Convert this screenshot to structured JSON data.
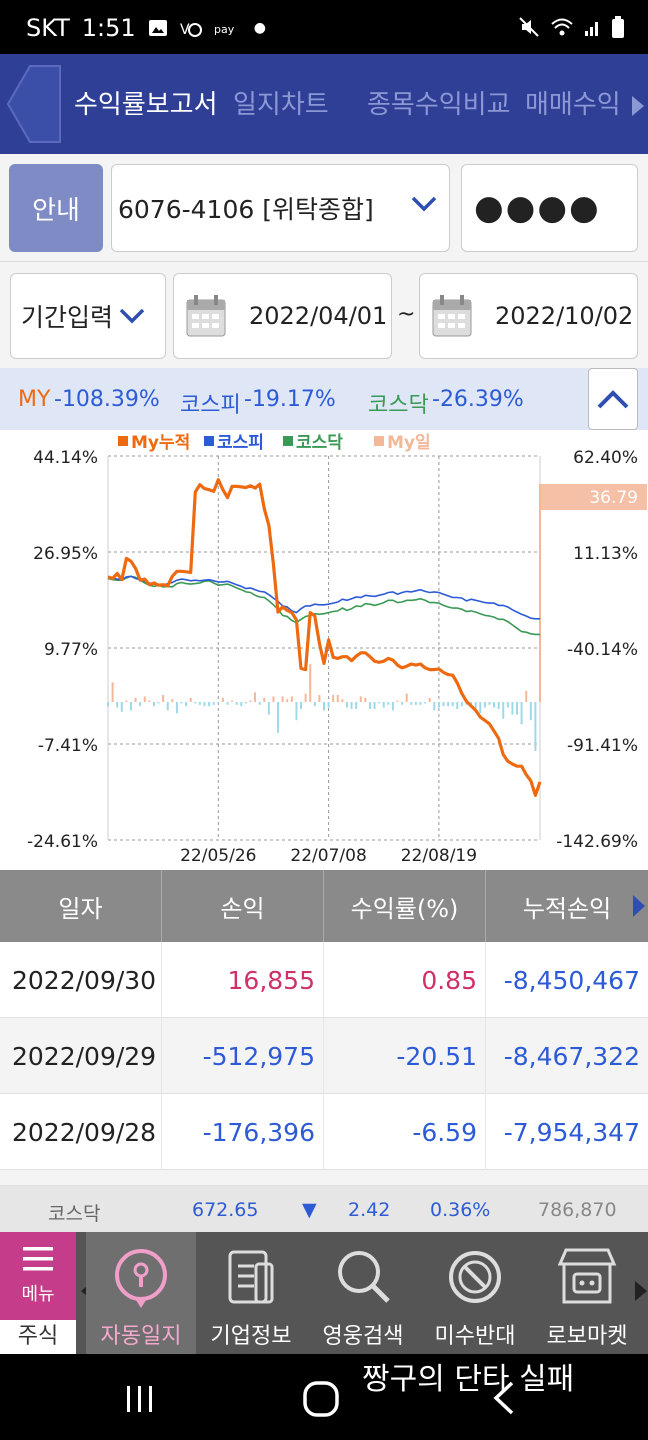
{
  "status_bar": {
    "carrier": "SKT",
    "time": "1:51"
  },
  "header": {
    "tabs": [
      {
        "label": "수익률보고서",
        "active": true
      },
      {
        "label": "일지차트",
        "active": false
      },
      {
        "label": "종목수익비교",
        "active": false
      },
      {
        "label": "매매수익",
        "active": false
      }
    ]
  },
  "account": {
    "guide_label": "안내",
    "account_value": "6076-4106 [위탁종합]",
    "password_mask": "●●●●"
  },
  "date_filter": {
    "period_label": "기간입력",
    "start_date": "2022/04/01",
    "separator": "~",
    "end_date": "2022/10/02"
  },
  "summary": {
    "my_label": "MY",
    "my_value": "-108.39%",
    "kospi_label": "코스피",
    "kospi_value": "-19.17%",
    "kosdaq_label": "코스닥",
    "kosdaq_value": "-26.39%"
  },
  "chart_data": {
    "type": "line",
    "legend": [
      "My누적",
      "코스피",
      "코스닥",
      "My일"
    ],
    "colors": {
      "my_cum": "#ee6a10",
      "kospi": "#2d5bd6",
      "kosdaq": "#3a9a55",
      "my_daily_pos": "#f3b89a",
      "my_daily_neg": "#9fd8e8"
    },
    "left_axis_ticks": [
      "44.14%",
      "26.95%",
      "9.77%",
      "-7.41%",
      "-24.61%"
    ],
    "right_axis_ticks": [
      "62.40%",
      "11.13%",
      "-40.14%",
      "-91.41%",
      "-142.69%"
    ],
    "ylim_left": [
      -24.61,
      44.14
    ],
    "x_ticks": [
      "22/05/26",
      "22/07/08",
      "22/08/19"
    ],
    "last_value_label": "36.79",
    "my_cum": [
      22.5,
      22.2,
      23.1,
      22.0,
      25.8,
      25.3,
      24.0,
      21.9,
      22.1,
      21.1,
      21.4,
      21.0,
      21.1,
      20.9,
      22.6,
      23.5,
      23.5,
      23.4,
      23.3,
      37.7,
      39.0,
      38.3,
      38.1,
      37.8,
      39.9,
      38.1,
      36.7,
      38.7,
      38.7,
      38.6,
      38.5,
      38.8,
      38.4,
      39.1,
      34.7,
      31.7,
      24.8,
      16.2,
      17.1,
      16.5,
      16.1,
      14.8,
      6.1,
      5.9,
      16.1,
      15.5,
      10.6,
      7.0,
      11.2,
      8.1,
      7.9,
      8.2,
      8.2,
      7.5,
      8.3,
      8.9,
      8.9,
      8.2,
      7.4,
      7.2,
      7.4,
      7.9,
      7.6,
      6.7,
      6.2,
      6.5,
      6.9,
      6.7,
      6.9,
      6.2,
      5.9,
      5.9,
      6.0,
      5.4,
      5.0,
      4.9,
      3.5,
      1.6,
      0.2,
      -0.6,
      -1.4,
      -2.6,
      -3.2,
      -3.8,
      -5.1,
      -6.4,
      -9.3,
      -10.5,
      -11.0,
      -11.4,
      -11.4,
      -12.9,
      -14.0,
      -16.6,
      -14.2
    ],
    "kospi": [
      22.4,
      22.3,
      22.1,
      22.0,
      22.5,
      22.6,
      22.2,
      22.0,
      21.7,
      21.4,
      21.3,
      21.1,
      21.0,
      21.3,
      21.5,
      21.9,
      22.1,
      22.0,
      21.8,
      21.9,
      21.8,
      21.9,
      22.0,
      21.8,
      21.6,
      21.6,
      21.7,
      21.4,
      21.1,
      20.8,
      20.4,
      20.5,
      20.2,
      19.9,
      19.8,
      19.3,
      18.7,
      18.1,
      17.3,
      17.1,
      16.4,
      16.1,
      16.8,
      17.3,
      17.3,
      17.6,
      17.5,
      17.5,
      17.6,
      17.8,
      18.0,
      18.5,
      18.3,
      18.6,
      18.9,
      18.8,
      19.2,
      19.1,
      19.0,
      19.2,
      19.4,
      19.7,
      19.8,
      19.4,
      19.7,
      19.9,
      19.8,
      20.0,
      20.2,
      19.9,
      19.7,
      19.8,
      19.7,
      19.4,
      19.1,
      18.8,
      18.8,
      18.7,
      18.2,
      18.5,
      18.3,
      18.1,
      17.9,
      17.8,
      17.8,
      17.4,
      17.4,
      17.1,
      16.6,
      16.2,
      15.8,
      15.5,
      15.1,
      15.0,
      15.0
    ],
    "kosdaq": [
      22.2,
      22.0,
      21.9,
      21.9,
      22.3,
      22.6,
      22.4,
      21.9,
      21.4,
      21.0,
      20.8,
      21.0,
      20.7,
      20.8,
      20.7,
      21.3,
      21.5,
      21.3,
      21.2,
      21.3,
      21.4,
      21.7,
      21.8,
      21.4,
      21.0,
      21.1,
      21.2,
      20.9,
      20.5,
      20.2,
      19.8,
      19.7,
      19.2,
      18.9,
      18.8,
      18.2,
      17.5,
      16.7,
      15.6,
      15.4,
      14.7,
      14.3,
      14.9,
      15.4,
      15.6,
      15.9,
      15.8,
      15.9,
      16.1,
      16.3,
      16.4,
      16.9,
      16.5,
      16.8,
      17.3,
      17.2,
      17.7,
      17.6,
      17.4,
      17.6,
      17.9,
      18.3,
      18.3,
      17.9,
      18.0,
      18.3,
      18.3,
      18.4,
      18.6,
      18.3,
      17.9,
      17.9,
      17.8,
      17.4,
      17.1,
      16.9,
      16.9,
      16.7,
      16.3,
      16.4,
      16.2,
      15.9,
      15.6,
      15.5,
      15.3,
      14.9,
      14.9,
      14.5,
      13.9,
      13.3,
      12.7,
      12.6,
      12.3,
      12.2,
      12.2
    ],
    "my_daily": [
      -0.3,
      1.4,
      -0.4,
      -0.7,
      0.1,
      -0.6,
      0.3,
      -0.3,
      0.4,
      0.1,
      -0.3,
      -0.1,
      0.5,
      -0.6,
      0.2,
      -0.8,
      -0.1,
      -0.3,
      0.3,
      -0.1,
      -0.2,
      -0.3,
      -0.3,
      -0.2,
      -0.1,
      0.3,
      -0.2,
      0.1,
      -0.2,
      -0.3,
      -0.1,
      0.1,
      0.7,
      -0.2,
      0.3,
      -0.9,
      0.4,
      -2.2,
      0.4,
      0.2,
      0.4,
      -1.3,
      -0.5,
      0.6,
      2.7,
      -0.3,
      0.5,
      -0.6,
      -0.4,
      0.5,
      0.5,
      0.2,
      -0.4,
      -0.5,
      -0.5,
      0.4,
      0.3,
      -0.5,
      -0.5,
      -0.1,
      -0.4,
      -0.2,
      -0.6,
      0.1,
      -0.2,
      0.6,
      -0.2,
      -0.2,
      -0.2,
      -0.1,
      0.3,
      -0.6,
      -0.4,
      -0.3,
      -0.3,
      -0.3,
      -0.5,
      -0.3,
      -0.2,
      -0.2,
      -0.5,
      -0.8,
      -0.4,
      -0.2,
      -0.4,
      -0.5,
      -1.2,
      -0.4,
      -0.9,
      -0.9,
      -1.6,
      0.8,
      -1.3,
      -3.5,
      12.0
    ]
  },
  "table": {
    "headers": [
      "일자",
      "손익",
      "수익률(%)",
      "누적손익"
    ],
    "rows": [
      {
        "date": "2022/09/30",
        "pnl": "16,855",
        "rate": "0.85",
        "cum": "-8,450,467"
      },
      {
        "date": "2022/09/29",
        "pnl": "-512,975",
        "rate": "-20.51",
        "cum": "-8,467,322"
      },
      {
        "date": "2022/09/28",
        "pnl": "-176,396",
        "rate": "-6.59",
        "cum": "-7,954,347"
      }
    ]
  },
  "ticker": {
    "name": "코스닥",
    "price": "672.65",
    "arrow": "▼",
    "change": "2.42",
    "pct": "0.36%",
    "volume": "786,870"
  },
  "bottom_nav": {
    "menu_label": "메뉴",
    "stock_tab_label": "주식",
    "items": [
      {
        "label": "자동일지",
        "icon": "pin-icon",
        "active": true
      },
      {
        "label": "기업정보",
        "icon": "document-icon",
        "active": false
      },
      {
        "label": "영웅검색",
        "icon": "search-icon",
        "active": false
      },
      {
        "label": "미수반대",
        "icon": "ban-icon",
        "active": false
      },
      {
        "label": "로보마켓",
        "icon": "robot-store-icon",
        "active": false
      }
    ]
  },
  "overlay_caption": "짱구의 단타 실패"
}
